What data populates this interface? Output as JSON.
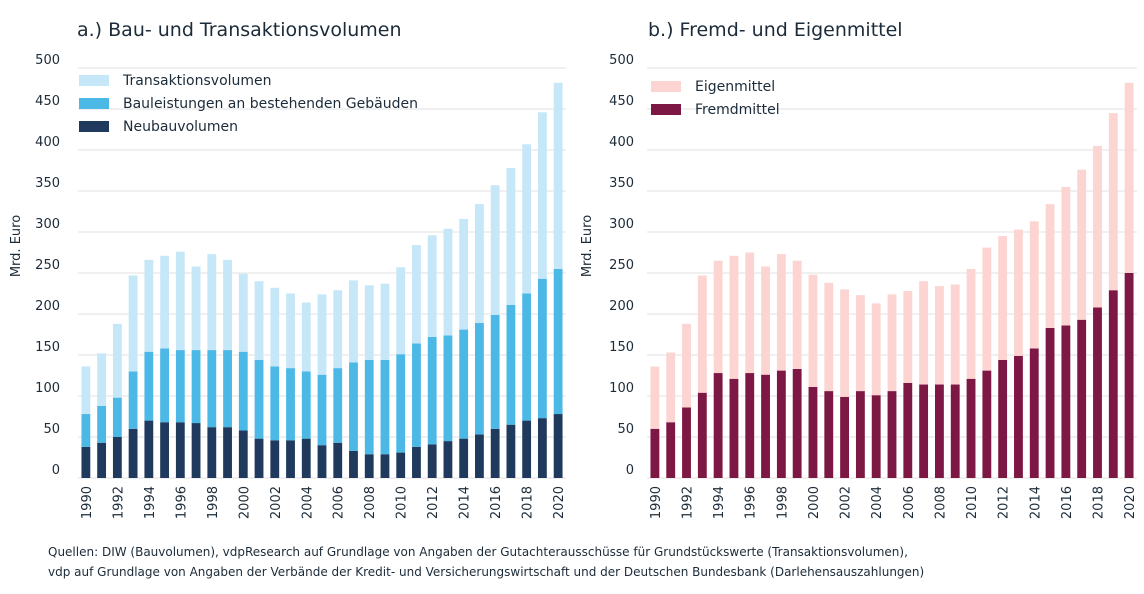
{
  "colors": {
    "transaktion": "#c6e7f8",
    "bauleistungen": "#4bb8e6",
    "neubau": "#1f3a5c",
    "eigenmittel": "#fcd5d3",
    "fremdmittel": "#7d1844",
    "grid": "#e2e2e2",
    "text": "#1c2b39"
  },
  "chart_data": [
    {
      "type": "bar",
      "stacked": true,
      "title": "a.) Bau- und Transaktionsvolumen",
      "ylabel": "Mrd. Euro",
      "ylim": [
        0,
        500
      ],
      "yticks": [
        "0",
        "50",
        "100",
        "150",
        "200",
        "250",
        "300",
        "350",
        "400",
        "450",
        "500"
      ],
      "legend_position": "top-left",
      "categories": [
        "1990",
        "1991",
        "1992",
        "1993",
        "1994",
        "1995",
        "1996",
        "1997",
        "1998",
        "1999",
        "2000",
        "2001",
        "2002",
        "2003",
        "2004",
        "2005",
        "2006",
        "2007",
        "2008",
        "2009",
        "2010",
        "2011",
        "2012",
        "2013",
        "2014",
        "2015",
        "2016",
        "2017",
        "2018",
        "2019",
        "2020"
      ],
      "xtick_labels": [
        "1990",
        "1992",
        "1994",
        "1996",
        "1998",
        "2000",
        "2002",
        "2004",
        "2006",
        "2008",
        "2010",
        "2012",
        "2014",
        "2016",
        "2018",
        "2020"
      ],
      "series": [
        {
          "name": "Neubauvolumen",
          "color": "#1f3a5c",
          "values": [
            38,
            43,
            50,
            60,
            70,
            68,
            68,
            67,
            62,
            62,
            58,
            48,
            46,
            46,
            48,
            40,
            43,
            33,
            29,
            29,
            31,
            38,
            41,
            45,
            48,
            53,
            60,
            65,
            70,
            73,
            78
          ]
        },
        {
          "name": "Bauleistungen an bestehenden Gebäuden",
          "color": "#4bb8e6",
          "values": [
            40,
            45,
            48,
            70,
            84,
            90,
            88,
            89,
            94,
            94,
            96,
            96,
            90,
            88,
            82,
            86,
            91,
            108,
            115,
            115,
            120,
            126,
            131,
            129,
            133,
            136,
            139,
            146,
            155,
            170,
            177
          ]
        },
        {
          "name": "Transaktionsvolumen",
          "color": "#c6e7f8",
          "values": [
            58,
            64,
            90,
            117,
            112,
            113,
            120,
            102,
            117,
            110,
            95,
            96,
            96,
            91,
            84,
            98,
            95,
            100,
            91,
            93,
            106,
            120,
            124,
            130,
            135,
            145,
            158,
            167,
            182,
            203,
            227
          ]
        }
      ],
      "legend": [
        {
          "name": "Transaktionsvolumen",
          "color": "#c6e7f8"
        },
        {
          "name": "Bauleistungen an bestehenden Gebäuden",
          "color": "#4bb8e6"
        },
        {
          "name": "Neubauvolumen",
          "color": "#1f3a5c"
        }
      ]
    },
    {
      "type": "bar",
      "stacked": true,
      "title": "b.) Fremd- und Eigenmittel",
      "ylabel": "Mrd. Euro",
      "ylim": [
        0,
        500
      ],
      "yticks": [
        "0",
        "50",
        "100",
        "150",
        "200",
        "250",
        "300",
        "350",
        "400",
        "450",
        "500"
      ],
      "legend_position": "top-left",
      "categories": [
        "1990",
        "1991",
        "1992",
        "1993",
        "1994",
        "1995",
        "1996",
        "1997",
        "1998",
        "1999",
        "2000",
        "2001",
        "2002",
        "2003",
        "2004",
        "2005",
        "2006",
        "2007",
        "2008",
        "2009",
        "2010",
        "2011",
        "2012",
        "2013",
        "2014",
        "2015",
        "2016",
        "2017",
        "2018",
        "2019",
        "2020"
      ],
      "xtick_labels": [
        "1990",
        "1992",
        "1994",
        "1996",
        "1998",
        "2000",
        "2002",
        "2004",
        "2006",
        "2008",
        "2010",
        "2012",
        "2014",
        "2016",
        "2018",
        "2020"
      ],
      "series": [
        {
          "name": "Fremdmittel",
          "color": "#7d1844",
          "values": [
            60,
            68,
            86,
            104,
            128,
            121,
            128,
            126,
            131,
            133,
            111,
            106,
            99,
            106,
            101,
            106,
            116,
            114,
            114,
            114,
            121,
            131,
            144,
            149,
            158,
            183,
            186,
            193,
            208,
            229,
            250
          ]
        },
        {
          "name": "Eigenmittel",
          "color": "#fcd5d3",
          "values": [
            76,
            85,
            102,
            143,
            137,
            150,
            147,
            132,
            142,
            132,
            137,
            132,
            131,
            117,
            112,
            118,
            112,
            126,
            120,
            122,
            134,
            150,
            151,
            154,
            155,
            151,
            169,
            183,
            197,
            216,
            232
          ]
        }
      ],
      "legend": [
        {
          "name": "Eigenmittel",
          "color": "#fcd5d3"
        },
        {
          "name": "Fremdmittel",
          "color": "#7d1844"
        }
      ]
    }
  ],
  "source": {
    "line1": "Quellen: DIW (Bauvolumen), vdpResearch auf Grundlage von Angaben der Gutachterausschüsse für Grundstückswerte (Transaktionsvolumen),",
    "line2": "vdp auf Grundlage von Angaben der Verbände der Kredit- und Versicherungswirtschaft und der Deutschen Bundesbank (Darlehensauszahlungen)"
  }
}
